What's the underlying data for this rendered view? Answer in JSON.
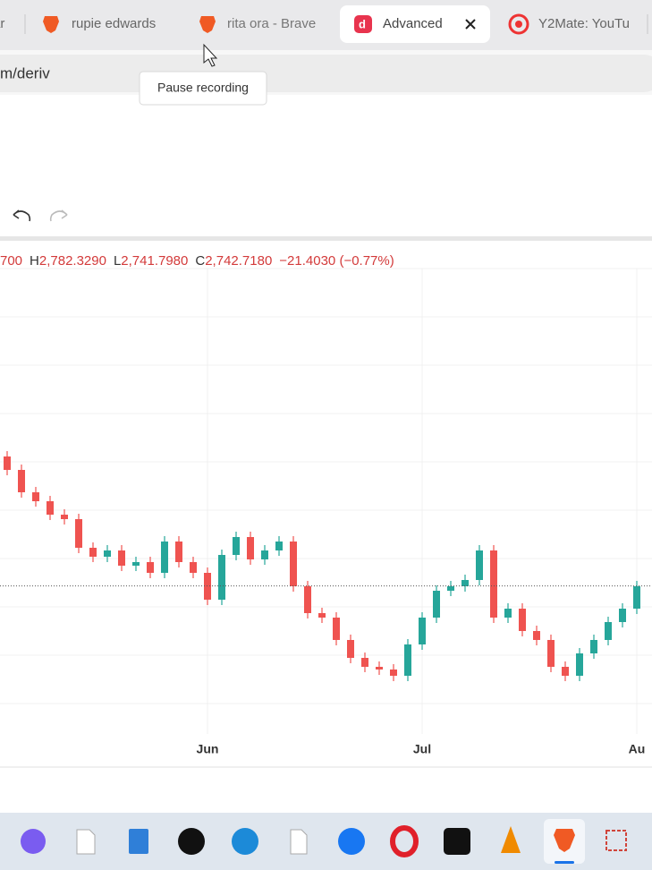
{
  "browser": {
    "tabs": [
      {
        "title": "ar"
      },
      {
        "title": "rupie edwards"
      },
      {
        "title": "rita ora - Brave"
      },
      {
        "title": "Advanced",
        "active": true
      },
      {
        "title": "Y2Mate: YouTu"
      }
    ],
    "address": "m/deriv",
    "tooltip": "Pause recording"
  },
  "chart_data": {
    "type": "candlestick",
    "legend": {
      "open_fragment": "700",
      "high_label": "H",
      "high": "2,782.3290",
      "low_label": "L",
      "low": "2,741.7980",
      "close_label": "C",
      "close": "2,742.7180",
      "change": "−21.4030 (−0.77%)"
    },
    "categories": [
      null,
      null,
      null,
      null,
      null,
      null,
      null,
      null,
      null,
      null,
      null,
      null,
      null,
      null,
      "Jun",
      null,
      null,
      null,
      null,
      null,
      null,
      null,
      null,
      null,
      null,
      null,
      null,
      null,
      null,
      "Jul",
      null,
      null,
      null,
      null,
      null,
      null,
      null,
      null,
      null,
      null,
      null,
      null,
      null,
      null,
      "Au"
    ],
    "open": [
      2815,
      2807.5,
      2795,
      2790,
      2782.5,
      2780,
      2764,
      2759,
      2762.5,
      2754,
      2756,
      2750,
      2767.5,
      2756,
      2750,
      2735,
      2760,
      2770,
      2757.5,
      2762.5,
      2767.5,
      2742.5,
      2727.5,
      2725,
      2712.5,
      2702.5,
      2697.5,
      2696,
      2692.5,
      2710,
      2725,
      2740,
      2742.5,
      2746,
      2762.5,
      2725,
      2730,
      2717.5,
      2712.5,
      2697.5,
      2692.5,
      2705,
      2712.5,
      2722.5,
      2730
    ],
    "high": [
      2818,
      2810.5,
      2798,
      2793,
      2785.5,
      2783,
      2767,
      2765.5,
      2765.5,
      2759,
      2759,
      2770.5,
      2770.5,
      2759,
      2753,
      2763,
      2773,
      2773,
      2765.5,
      2770.5,
      2770.5,
      2745.5,
      2730.5,
      2728,
      2715.5,
      2705.5,
      2700.5,
      2699,
      2713,
      2728,
      2743,
      2745.5,
      2749,
      2765.5,
      2765.5,
      2733,
      2733,
      2720.5,
      2715.5,
      2700.5,
      2708,
      2715.5,
      2725.5,
      2733,
      2745.5
    ],
    "low": [
      2804.5,
      2792,
      2787,
      2779.5,
      2777,
      2761,
      2756,
      2756,
      2751,
      2751,
      2747,
      2747,
      2753,
      2747,
      2732,
      2732,
      2757,
      2754.5,
      2754.5,
      2759.5,
      2739.5,
      2724.5,
      2722,
      2709.5,
      2699.5,
      2694.5,
      2693,
      2689.5,
      2689.5,
      2707,
      2722,
      2737,
      2739.5,
      2743,
      2722,
      2722,
      2714.5,
      2709.5,
      2694.5,
      2689.5,
      2689.5,
      2702,
      2709.5,
      2719.5,
      2727
    ],
    "close": [
      2807.5,
      2795,
      2790,
      2782.5,
      2780,
      2764,
      2759,
      2762.5,
      2754,
      2756,
      2750,
      2767.5,
      2756,
      2750,
      2735,
      2760,
      2770,
      2757.5,
      2762.5,
      2767.5,
      2742.5,
      2727.5,
      2725,
      2712.5,
      2702.5,
      2697.5,
      2696,
      2692.5,
      2710,
      2725,
      2740,
      2742.5,
      2746,
      2762.5,
      2725,
      2730,
      2717.5,
      2712.5,
      2697.5,
      2692.5,
      2705,
      2712.5,
      2722.5,
      2730,
      2742.5
    ],
    "ylim": [
      2640,
      2920
    ],
    "ygrid": [
      2920,
      2893,
      2866,
      2839,
      2812,
      2785,
      2758,
      2731,
      2704,
      2677
    ],
    "up_color": "#26a69a",
    "down_color": "#ef5350",
    "price_line": 2742.718
  }
}
